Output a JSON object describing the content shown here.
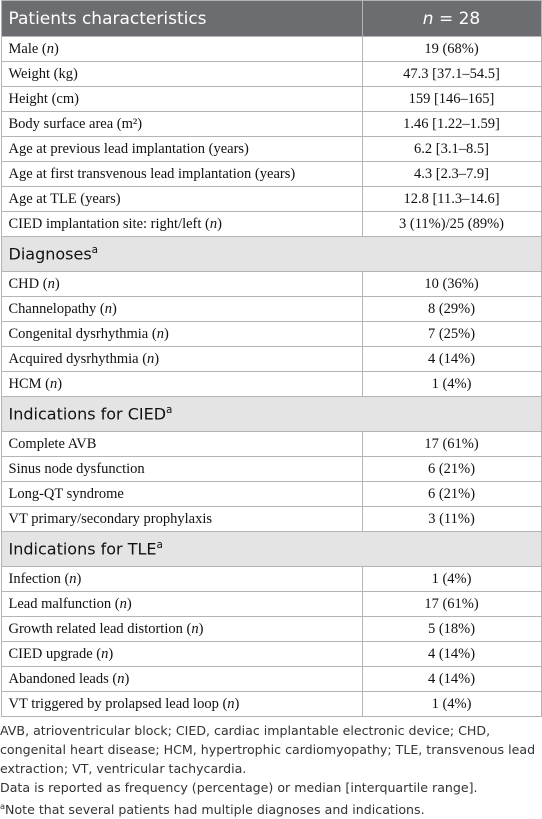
{
  "header": {
    "label": "Patients characteristics",
    "value": "n = 28"
  },
  "rows": [
    [
      "Male (n)",
      "19 (68%)"
    ],
    [
      "Weight (kg)",
      "47.3 [37.1–54.5]"
    ],
    [
      "Height (cm)",
      "159 [146–165]"
    ],
    [
      "Body surface area (m²)",
      "1.46 [1.22–1.59]"
    ],
    [
      "Age at previous lead implantation (years)",
      "6.2 [3.1–8.5]"
    ],
    [
      "Age at first transvenous lead implantation (years)",
      "4.3 [2.3–7.9]"
    ],
    [
      "Age at TLE (years)",
      "12.8 [11.3–14.6]"
    ],
    [
      "CIED implantation site: right/left (n)",
      "3 (11%)/25 (89%)"
    ]
  ],
  "sections": [
    {
      "title": "Diagnoses",
      "mark": "a",
      "rows": [
        [
          "CHD (n)",
          "10 (36%)"
        ],
        [
          "Channelopathy (n)",
          "8 (29%)"
        ],
        [
          "Congenital dysrhythmia (n)",
          "7 (25%)"
        ],
        [
          "Acquired dysrhythmia (n)",
          "4 (14%)"
        ],
        [
          "HCM (n)",
          "1 (4%)"
        ]
      ]
    },
    {
      "title": "Indications for CIED",
      "mark": "a",
      "rows": [
        [
          "Complete AVB",
          "17 (61%)"
        ],
        [
          "Sinus node dysfunction",
          "6 (21%)"
        ],
        [
          "Long-QT syndrome",
          "6 (21%)"
        ],
        [
          "VT primary/secondary prophylaxis",
          "3 (11%)"
        ]
      ]
    },
    {
      "title": "Indications for TLE",
      "mark": "a",
      "rows": [
        [
          "Infection (n)",
          "1 (4%)"
        ],
        [
          "Lead malfunction (n)",
          "17 (61%)"
        ],
        [
          "Growth related lead distortion (n)",
          "5 (18%)"
        ],
        [
          "CIED upgrade (n)",
          "4 (14%)"
        ],
        [
          "Abandoned leads (n)",
          "4 (14%)"
        ],
        [
          "VT triggered by prolapsed lead loop (n)",
          "1 (4%)"
        ]
      ]
    }
  ],
  "footnotes": {
    "abbreviations": "AVB, atrioventricular block; CIED, cardiac implantable electronic device; CHD, congenital heart disease; HCM, hypertrophic cardiomyopathy; TLE, transvenous lead extraction; VT, ventricular tachycardia.",
    "data_note": "Data is reported as frequency (percentage) or median [interquartile range].",
    "mark": "a",
    "note": "Note that several patients had multiple diagnoses and indications."
  }
}
